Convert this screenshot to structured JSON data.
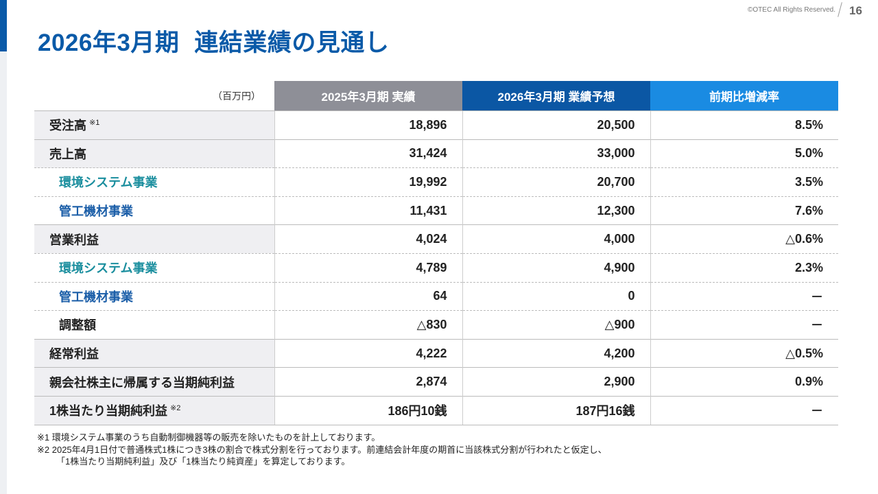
{
  "header": {
    "title_period": "2026年3月期",
    "title_main": "連結業績の見通し",
    "copyright": "©OTEC All Rights Reserved.",
    "page": "16"
  },
  "table": {
    "unit": "（百万円）",
    "columns": [
      "2025年3月期 実績",
      "2026年3月期 業績予想",
      "前期比増減率"
    ],
    "rows": [
      {
        "label": "受注高",
        "note": "※1",
        "values": [
          "18,896",
          "20,500",
          "8.5%"
        ]
      },
      {
        "label": "売上高",
        "values": [
          "31,424",
          "33,000",
          "5.0%"
        ]
      },
      {
        "label": "環境システム事業",
        "values": [
          "19,992",
          "20,700",
          "3.5%"
        ]
      },
      {
        "label": "管工機材事業",
        "values": [
          "11,431",
          "12,300",
          "7.6%"
        ]
      },
      {
        "label": "営業利益",
        "values": [
          "4,024",
          "4,000",
          "△0.6%"
        ]
      },
      {
        "label": "環境システム事業",
        "values": [
          "4,789",
          "4,900",
          "2.3%"
        ]
      },
      {
        "label": "管工機材事業",
        "values": [
          "64",
          "0",
          "－"
        ]
      },
      {
        "label": "調整額",
        "values": [
          "△830",
          "△900",
          "－"
        ]
      },
      {
        "label": "経常利益",
        "values": [
          "4,222",
          "4,200",
          "△0.5%"
        ]
      },
      {
        "label": "親会社株主に帰属する当期純利益",
        "values": [
          "2,874",
          "2,900",
          "0.9%"
        ]
      },
      {
        "label": "1株当たり当期純利益",
        "note": "※2",
        "values": [
          "186円10銭",
          "187円16銭",
          "－"
        ]
      }
    ]
  },
  "notes": [
    "※1 環境システム事業のうち自動制御機器等の販売を除いたものを計上しております。",
    "※2 2025年4月1日付で普通株式1株につき3株の割合で株式分割を行っております。前連結会計年度の期首に当該株式分割が行われたと仮定し、",
    "「1株当たり当期純利益」及び「1株当たり純資産」を算定しております。"
  ]
}
